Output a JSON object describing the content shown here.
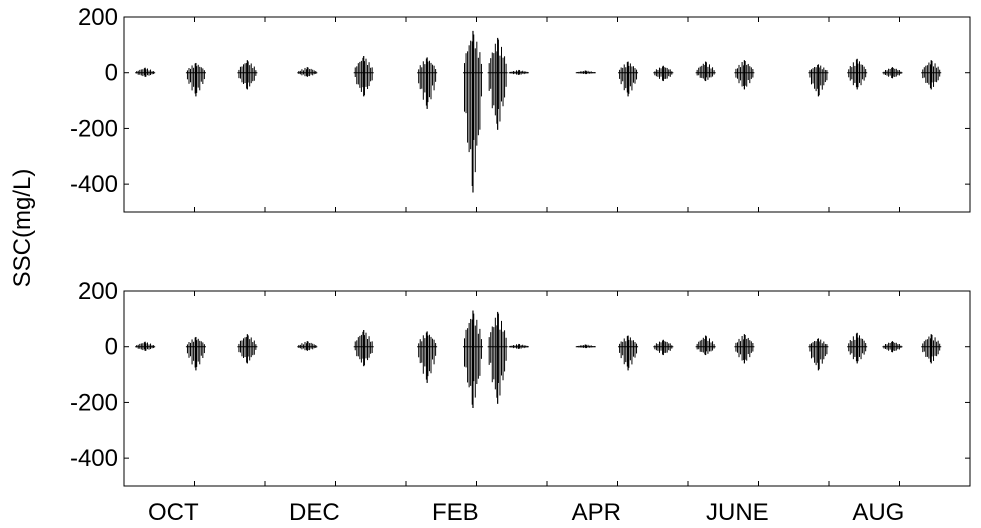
{
  "chart_data": [
    {
      "type": "line",
      "panel": "top",
      "ylabel": "SSC(mg/L)",
      "ylim": [
        -500,
        200
      ],
      "yticks": [
        200,
        0,
        -200,
        -400
      ],
      "ytick_labels": [
        "200",
        "0",
        "-200",
        "-400"
      ],
      "xlim": [
        0,
        12
      ],
      "xtick_positions": [
        1,
        2,
        3,
        4,
        5,
        6,
        7,
        8,
        9,
        10,
        11,
        12
      ],
      "grid": false,
      "series": [
        {
          "values_note": "",
          "bursts": [
            {
              "x": 0.3,
              "lo": -15,
              "hi": 18
            },
            {
              "x": 1.02,
              "lo": -85,
              "hi": 35
            },
            {
              "x": 1.75,
              "lo": -60,
              "hi": 45
            },
            {
              "x": 2.6,
              "lo": -15,
              "hi": 20
            },
            {
              "x": 3.4,
              "lo": -85,
              "hi": 60
            },
            {
              "x": 4.3,
              "lo": -130,
              "hi": 55
            },
            {
              "x": 4.95,
              "lo": -430,
              "hi": 150
            },
            {
              "x": 5.3,
              "lo": -205,
              "hi": 125
            },
            {
              "x": 5.6,
              "lo": -8,
              "hi": 10
            },
            {
              "x": 6.55,
              "lo": -5,
              "hi": 8
            },
            {
              "x": 7.15,
              "lo": -85,
              "hi": 40
            },
            {
              "x": 7.65,
              "lo": -30,
              "hi": 25
            },
            {
              "x": 8.25,
              "lo": -30,
              "hi": 40
            },
            {
              "x": 8.8,
              "lo": -60,
              "hi": 45
            },
            {
              "x": 9.85,
              "lo": -85,
              "hi": 30
            },
            {
              "x": 10.4,
              "lo": -60,
              "hi": 50
            },
            {
              "x": 10.9,
              "lo": -20,
              "hi": 20
            },
            {
              "x": 11.45,
              "lo": -60,
              "hi": 45
            }
          ]
        }
      ]
    },
    {
      "type": "line",
      "panel": "bottom",
      "ylim": [
        -500,
        200
      ],
      "yticks": [
        200,
        0,
        -200,
        -400
      ],
      "ytick_labels": [
        "200",
        "0",
        "-200",
        "-400"
      ],
      "xlim": [
        0,
        12
      ],
      "xtick_positions": [
        1,
        2,
        3,
        4,
        5,
        6,
        7,
        8,
        9,
        10,
        11,
        12
      ],
      "xtick_labels": [
        {
          "x": 0.7,
          "label": "OCT"
        },
        {
          "x": 2.7,
          "label": "DEC"
        },
        {
          "x": 4.7,
          "label": "FEB"
        },
        {
          "x": 6.7,
          "label": "APR"
        },
        {
          "x": 8.7,
          "label": "JUNE"
        },
        {
          "x": 10.7,
          "label": "AUG"
        }
      ],
      "grid": false,
      "series": [
        {
          "bursts": [
            {
              "x": 0.3,
              "lo": -15,
              "hi": 18
            },
            {
              "x": 1.02,
              "lo": -85,
              "hi": 35
            },
            {
              "x": 1.75,
              "lo": -60,
              "hi": 45
            },
            {
              "x": 2.6,
              "lo": -15,
              "hi": 20
            },
            {
              "x": 3.4,
              "lo": -70,
              "hi": 60
            },
            {
              "x": 4.3,
              "lo": -130,
              "hi": 55
            },
            {
              "x": 4.95,
              "lo": -220,
              "hi": 130
            },
            {
              "x": 5.3,
              "lo": -205,
              "hi": 125
            },
            {
              "x": 5.6,
              "lo": -8,
              "hi": 10
            },
            {
              "x": 6.55,
              "lo": -5,
              "hi": 8
            },
            {
              "x": 7.15,
              "lo": -85,
              "hi": 40
            },
            {
              "x": 7.65,
              "lo": -30,
              "hi": 25
            },
            {
              "x": 8.25,
              "lo": -30,
              "hi": 40
            },
            {
              "x": 8.8,
              "lo": -60,
              "hi": 45
            },
            {
              "x": 9.85,
              "lo": -85,
              "hi": 30
            },
            {
              "x": 10.4,
              "lo": -60,
              "hi": 50
            },
            {
              "x": 10.9,
              "lo": -20,
              "hi": 20
            },
            {
              "x": 11.45,
              "lo": -60,
              "hi": 45
            }
          ]
        }
      ]
    }
  ]
}
